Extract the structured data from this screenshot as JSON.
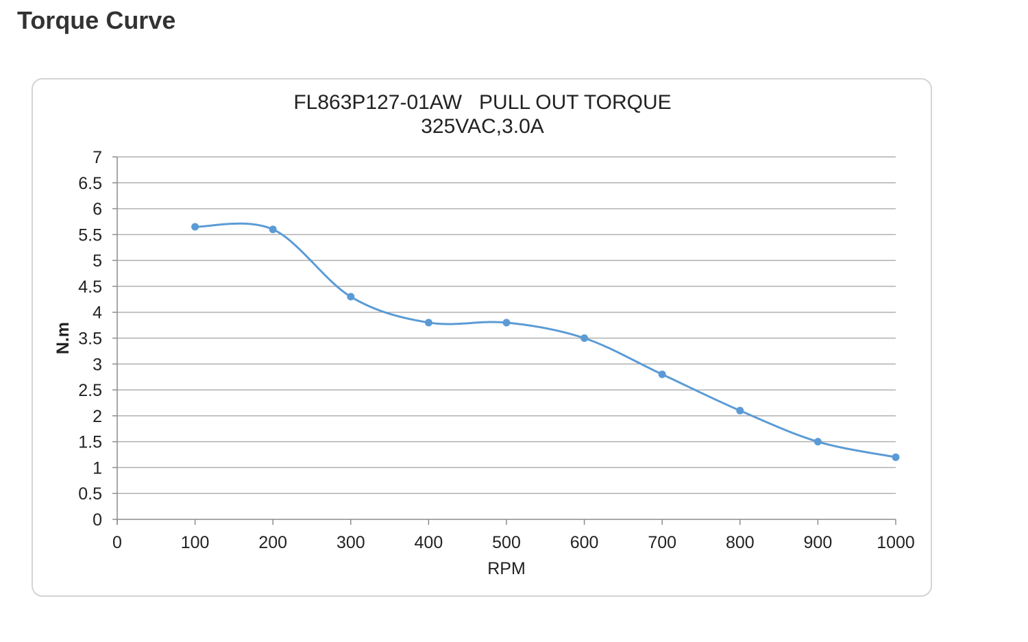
{
  "page": {
    "heading": "Torque Curve"
  },
  "chart_data": {
    "type": "line",
    "title_lines": [
      "FL863P127-01AW   PULL OUT TORQUE",
      "325VAC,3.0A"
    ],
    "xlabel": "RPM",
    "ylabel": "N.m",
    "xlim": [
      0,
      1000
    ],
    "ylim": [
      0,
      7
    ],
    "x_ticks": [
      0,
      100,
      200,
      300,
      400,
      500,
      600,
      700,
      800,
      900,
      1000
    ],
    "y_ticks": [
      0,
      0.5,
      1,
      1.5,
      2,
      2.5,
      3,
      3.5,
      4,
      4.5,
      5,
      5.5,
      6,
      6.5,
      7
    ],
    "grid": "horizontal",
    "smooth": true,
    "series": [
      {
        "x": [
          100,
          200,
          300,
          400,
          500,
          600,
          700,
          800,
          900,
          1000
        ],
        "values": [
          5.65,
          5.6,
          4.3,
          3.8,
          3.8,
          3.5,
          2.8,
          2.1,
          1.5,
          1.2
        ],
        "color": "#5b9bd5"
      }
    ]
  },
  "colors": {
    "series_line": "#5b9bd5",
    "gridline": "#b0b0b0",
    "axis": "#8c8c8c",
    "frame_border": "#d4d4d4",
    "heading": "#333333"
  }
}
